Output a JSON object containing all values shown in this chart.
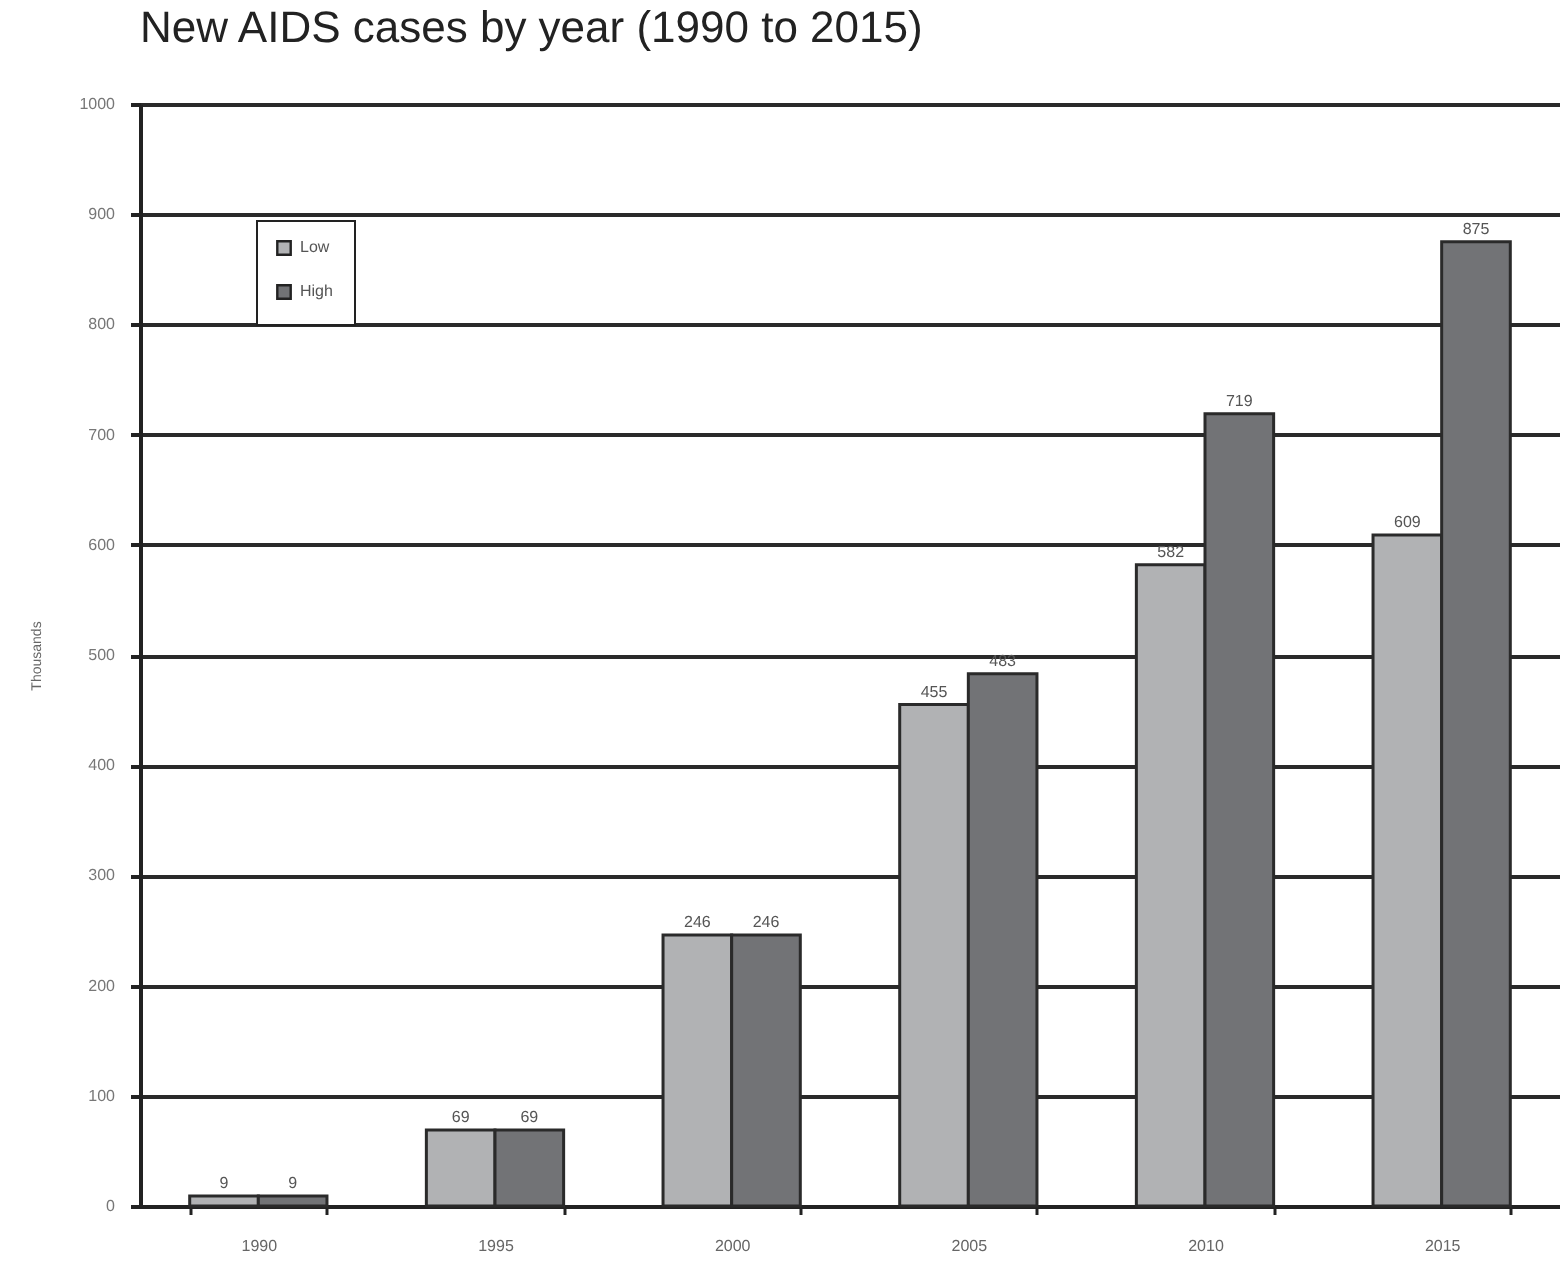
{
  "chart_data": {
    "type": "bar",
    "title": "New AIDS cases by year (1990 to 2015)",
    "ylabel": "Thousands",
    "categories": [
      "1990",
      "1995",
      "2000",
      "2005",
      "2010",
      "2015"
    ],
    "series": [
      {
        "name": "Low",
        "color": "#b1b2b4",
        "values": [
          9,
          69,
          246,
          455,
          582,
          609
        ]
      },
      {
        "name": "High",
        "color": "#727376",
        "values": [
          9,
          69,
          246,
          483,
          719,
          875
        ]
      }
    ],
    "ylim": [
      0,
      1000
    ],
    "yticks": [
      0,
      100,
      200,
      300,
      400,
      500,
      600,
      700,
      800,
      900,
      1000
    ],
    "grid": "y",
    "legend": "top left",
    "data_labels": true
  }
}
